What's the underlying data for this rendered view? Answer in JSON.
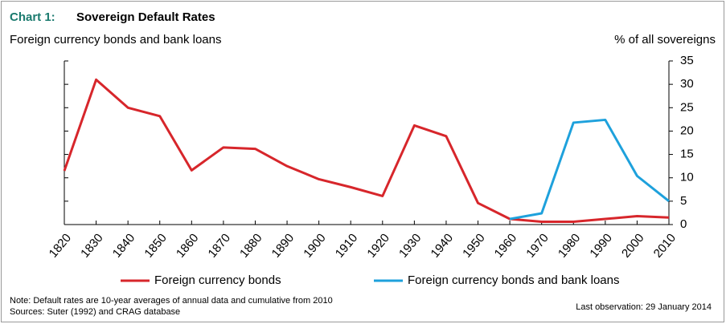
{
  "chart_data": {
    "type": "line",
    "label": "Chart 1:",
    "title": "Sovereign Default Rates",
    "subtitle": "Foreign currency bonds and bank loans",
    "y_axis_label": "% of all sovereigns",
    "x": [
      1820,
      1830,
      1840,
      1850,
      1860,
      1870,
      1880,
      1890,
      1900,
      1910,
      1920,
      1930,
      1940,
      1950,
      1960,
      1970,
      1980,
      1990,
      2000,
      2010
    ],
    "series": [
      {
        "name": "Foreign currency bonds",
        "color": "#d7262b",
        "values": [
          11.5,
          31,
          25,
          23.2,
          11.6,
          16.5,
          16.2,
          12.5,
          9.7,
          8,
          6.1,
          21.2,
          18.9,
          4.6,
          1.2,
          0.6,
          0.6,
          1.2,
          1.8,
          1.5
        ]
      },
      {
        "name": "Foreign currency bonds and bank loans",
        "color": "#1ea1dc",
        "values": [
          null,
          null,
          null,
          null,
          null,
          null,
          null,
          null,
          null,
          null,
          null,
          null,
          null,
          null,
          1.2,
          2.4,
          21.8,
          22.4,
          10.4,
          5.0
        ]
      }
    ],
    "xlim": [
      1820,
      2010
    ],
    "xticks": [
      1820,
      1830,
      1840,
      1850,
      1860,
      1870,
      1880,
      1890,
      1900,
      1910,
      1920,
      1930,
      1940,
      1950,
      1960,
      1970,
      1980,
      1990,
      2000,
      2010
    ],
    "ylim": [
      0,
      35
    ],
    "yticks": [
      0,
      5,
      10,
      15,
      20,
      25,
      30,
      35
    ],
    "grid": false,
    "legend": "bottom",
    "notes": [
      "Note: Default rates are 10-year averages of annual data and cumulative from 2010",
      "Sources: Suter (1992) and CRAG database"
    ],
    "last_observation": "Last observation: 29 January 2014"
  }
}
